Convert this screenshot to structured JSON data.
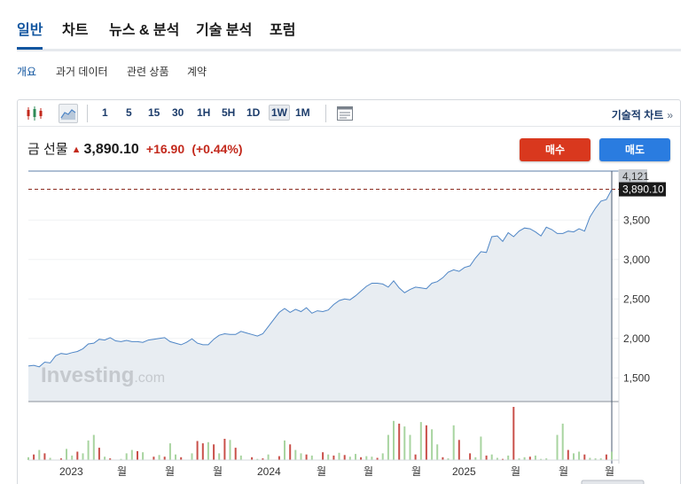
{
  "main_tabs": [
    {
      "label": "일반",
      "active": true
    },
    {
      "label": "차트",
      "active": false
    },
    {
      "label": "뉴스 & 분석",
      "active": false
    },
    {
      "label": "기술 분석",
      "active": false
    },
    {
      "label": "포럼",
      "active": false
    }
  ],
  "sub_tabs": [
    {
      "label": "개요",
      "active": true
    },
    {
      "label": "과거 데이터",
      "active": false
    },
    {
      "label": "관련 상품",
      "active": false
    },
    {
      "label": "계약",
      "active": false
    }
  ],
  "toolbar": {
    "chart_type_icons": [
      "candlestick-icon",
      "area-chart-icon"
    ],
    "intervals": [
      "1",
      "5",
      "15",
      "30",
      "1H",
      "5H",
      "1D",
      "1W",
      "1M"
    ],
    "active_interval": "1W",
    "settings_icon": "chart-settings-icon",
    "technical_chart_label": "기술적 차트",
    "technical_chart_arrow": "»"
  },
  "quote": {
    "name": "금 선물",
    "price": "3,890.10",
    "change": "+16.90",
    "change_pct": "(+0.44%)",
    "direction_icon": "up-arrow-icon"
  },
  "buttons": {
    "buy": "매수",
    "sell": "매도"
  },
  "watermark": {
    "brand": "Investing",
    "suffix": ".com"
  },
  "colors": {
    "accent": "#1256a0",
    "down_red": "#c3291c",
    "buy": "#d9381e",
    "sell": "#2a7ce0",
    "line": "#4f86c6",
    "area": "#e8edf2"
  },
  "chart_data": {
    "type": "area",
    "title": "",
    "ylim": [
      1200,
      4121
    ],
    "y_ticks": [
      "1,500",
      "2,000",
      "2,500",
      "3,000",
      "3,500"
    ],
    "y_top_label": "4,121",
    "last_price_label": "3,890.10",
    "x_labels": [
      "2023",
      "월",
      "월",
      "월",
      "2024",
      "월",
      "월",
      "월",
      "2025",
      "월",
      "월",
      "월"
    ],
    "series": [
      {
        "values": [
          1650,
          1660,
          1640,
          1700,
          1690,
          1780,
          1810,
          1800,
          1820,
          1835,
          1870,
          1930,
          1940,
          1990,
          1980,
          2010,
          1970,
          1960,
          1975,
          1960,
          1960,
          1950,
          1980,
          1990,
          2000,
          2010,
          1960,
          1940,
          1920,
          1950,
          1995,
          1940,
          1920,
          1920,
          1990,
          2040,
          2060,
          2050,
          2050,
          2090,
          2070,
          2050,
          2030,
          2060,
          2150,
          2240,
          2330,
          2380,
          2330,
          2370,
          2340,
          2390,
          2320,
          2350,
          2340,
          2360,
          2430,
          2480,
          2500,
          2490,
          2540,
          2600,
          2660,
          2700,
          2700,
          2690,
          2650,
          2730,
          2640,
          2580,
          2620,
          2650,
          2640,
          2630,
          2700,
          2720,
          2770,
          2840,
          2870,
          2850,
          2900,
          2920,
          3020,
          3100,
          3090,
          3290,
          3300,
          3230,
          3340,
          3290,
          3360,
          3400,
          3390,
          3350,
          3300,
          3410,
          3380,
          3330,
          3330,
          3360,
          3350,
          3390,
          3360,
          3540,
          3650,
          3740,
          3760,
          3890
        ]
      }
    ],
    "volume": {
      "values": [
        5,
        10,
        18,
        12,
        4,
        0,
        3,
        20,
        8,
        15,
        12,
        35,
        45,
        22,
        6,
        3,
        0,
        2,
        12,
        18,
        16,
        14,
        0,
        6,
        9,
        6,
        30,
        10,
        5,
        0,
        12,
        34,
        30,
        32,
        28,
        12,
        38,
        36,
        22,
        8,
        0,
        5,
        2,
        3,
        10,
        0,
        7,
        35,
        28,
        18,
        12,
        10,
        8,
        0,
        14,
        10,
        8,
        13,
        9,
        6,
        11,
        5,
        7,
        6,
        4,
        12,
        45,
        70,
        65,
        60,
        45,
        10,
        68,
        62,
        55,
        28,
        5,
        3,
        62,
        36,
        0,
        12,
        5,
        42,
        8,
        10,
        4,
        2,
        8,
        95,
        3,
        5,
        6,
        8,
        2,
        3,
        0,
        45,
        65,
        18,
        12,
        15,
        10,
        4,
        3,
        3,
        10,
        15
      ],
      "up": [
        true,
        false,
        true,
        false,
        true,
        true,
        false,
        true,
        true,
        false,
        true,
        true,
        true,
        false,
        true,
        false,
        true,
        true,
        true,
        true,
        false,
        true,
        true,
        false,
        true,
        false,
        true,
        true,
        false,
        true,
        true,
        false,
        false,
        true,
        false,
        true,
        false,
        true,
        false,
        true,
        true,
        false,
        true,
        false,
        true,
        true,
        false,
        true,
        false,
        true,
        true,
        false,
        true,
        true,
        false,
        true,
        false,
        true,
        false,
        true,
        true,
        false,
        true,
        true,
        false,
        true,
        true,
        true,
        false,
        true,
        true,
        false,
        true,
        false,
        true,
        true,
        false,
        true,
        true,
        false,
        true,
        false,
        true,
        true,
        false,
        true,
        true,
        false,
        true,
        false,
        true,
        true,
        false,
        true,
        true,
        true,
        false,
        true,
        true,
        false,
        true,
        true,
        false,
        true,
        true,
        true,
        false,
        true
      ]
    }
  }
}
